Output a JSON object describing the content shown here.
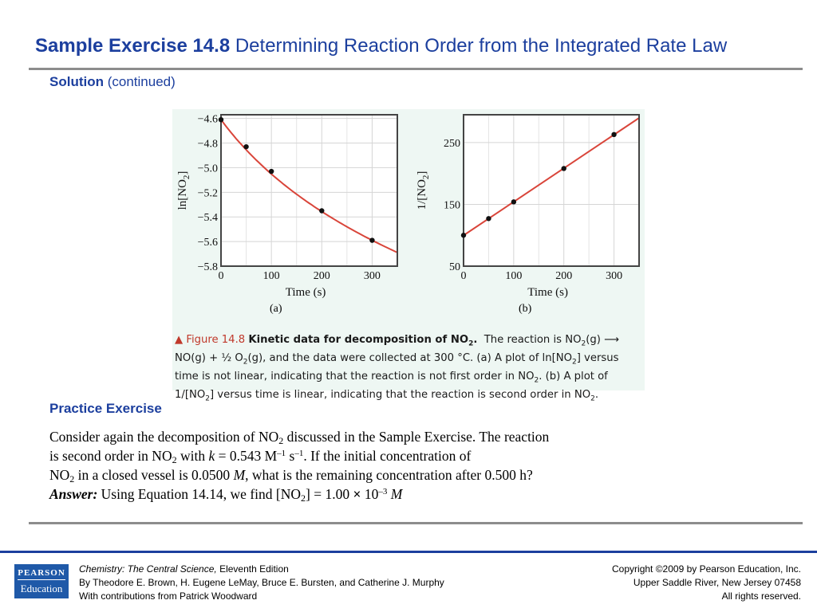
{
  "title": {
    "bold": "Sample Exercise 14.8",
    "rest": "Determining Reaction Order from the Integrated Rate Law"
  },
  "subhead": {
    "bold": "Solution",
    "rest": "(continued)"
  },
  "figure": {
    "panel_a_label": "(a)",
    "panel_b_label": "(b)",
    "caption": {
      "marker": "▲ Figure 14.8",
      "fig_title": "Kinetic data for decomposition of NO",
      "fig_title_sub": "2",
      "fig_title_end": ".",
      "line1_a": "The reaction is NO",
      "line1_sub": "2",
      "line1_b": "(g) ⟶",
      "line2_a": "NO(g) + ",
      "line2_frac": "½",
      "line2_b": " O",
      "line2_sub": "2",
      "line2_c": "(g), and the data were collected at 300 °C. (a) A plot of ln[NO",
      "line2_sub2": "2",
      "line2_d": "] versus",
      "line3_a": "time is not linear, indicating that the reaction is not first order in NO",
      "line3_sub": "2",
      "line3_b": ". (b) A plot of",
      "line4_a": "1/[NO",
      "line4_sub": "2",
      "line4_b": "] versus time is linear, indicating that the reaction is second order in NO",
      "line4_sub2": "2",
      "line4_c": "."
    }
  },
  "practice": {
    "heading": "Practice Exercise",
    "l1a": "Consider again the decomposition of NO",
    "l1sub": "2",
    "l1b": " discussed in the Sample Exercise. The reaction",
    "l2a": "is second order in NO",
    "l2sub": "2",
    "l2b": " with ",
    "l2k": "k",
    "l2c": " = 0.543 M",
    "l2sup1": "–1",
    "l2d": " s",
    "l2sup2": "–1",
    "l2e": ". If the initial concentration of",
    "l3a": "NO",
    "l3sub": "2",
    "l3b": " in a closed vessel is 0.0500 ",
    "l3m": "M",
    "l3c": ", what is the remaining concentration after 0.500 h?",
    "answer_label": "Answer:",
    "l4a": " Using Equation 14.14, we find [NO",
    "l4sub": "2",
    "l4b": "] = 1.00 ",
    "l4x": "×",
    "l4c": " 10",
    "l4sup": "–3",
    "l4m": " M"
  },
  "footer": {
    "logo_top": "PEARSON",
    "logo_bottom": "Education",
    "book_title": "Chemistry: The Central Science,",
    "edition": " Eleventh Edition",
    "authors": "By Theodore E. Brown, H. Eugene LeMay, Bruce E. Bursten, and Catherine J. Murphy",
    "contrib": "With contributions from Patrick Woodward",
    "copyright": "Copyright ©2009 by Pearson Education, Inc.",
    "location": "Upper Saddle River, New Jersey 07458",
    "rights": "All rights reserved."
  },
  "colors": {
    "curve": "#d9453a",
    "point": "#111111",
    "title": "#1c3f9e"
  },
  "chart_data": [
    {
      "type": "scatter",
      "xlabel": "Time (s)",
      "ylabel": "ln[NO2]",
      "xlim": [
        0,
        350
      ],
      "ylim": [
        -5.8,
        -4.57
      ],
      "xticks": [
        0,
        100,
        200,
        300
      ],
      "xtick_labels": [
        "0",
        "100",
        "200",
        "300"
      ],
      "yticks": [
        -4.6,
        -4.8,
        -5.0,
        -5.2,
        -5.4,
        -5.6,
        -5.8
      ],
      "ytick_labels": [
        "−4.6",
        "−4.8",
        "−5.0",
        "−5.2",
        "−5.4",
        "−5.6",
        "−5.8"
      ],
      "x": [
        0,
        50,
        100,
        200,
        300
      ],
      "y": [
        -4.61,
        -4.83,
        -5.03,
        -5.35,
        -5.59
      ],
      "fit": "curve"
    },
    {
      "type": "scatter",
      "xlabel": "Time (s)",
      "ylabel": "1/[NO2]",
      "xlim": [
        0,
        350
      ],
      "ylim": [
        50,
        295
      ],
      "xticks": [
        0,
        100,
        200,
        300
      ],
      "xtick_labels": [
        "0",
        "100",
        "200",
        "300"
      ],
      "yticks": [
        50,
        150,
        250
      ],
      "ytick_labels": [
        "50",
        "150",
        "250"
      ],
      "x": [
        0,
        50,
        100,
        200,
        300
      ],
      "y": [
        100,
        127,
        154,
        208,
        263
      ],
      "fit": "line"
    }
  ]
}
